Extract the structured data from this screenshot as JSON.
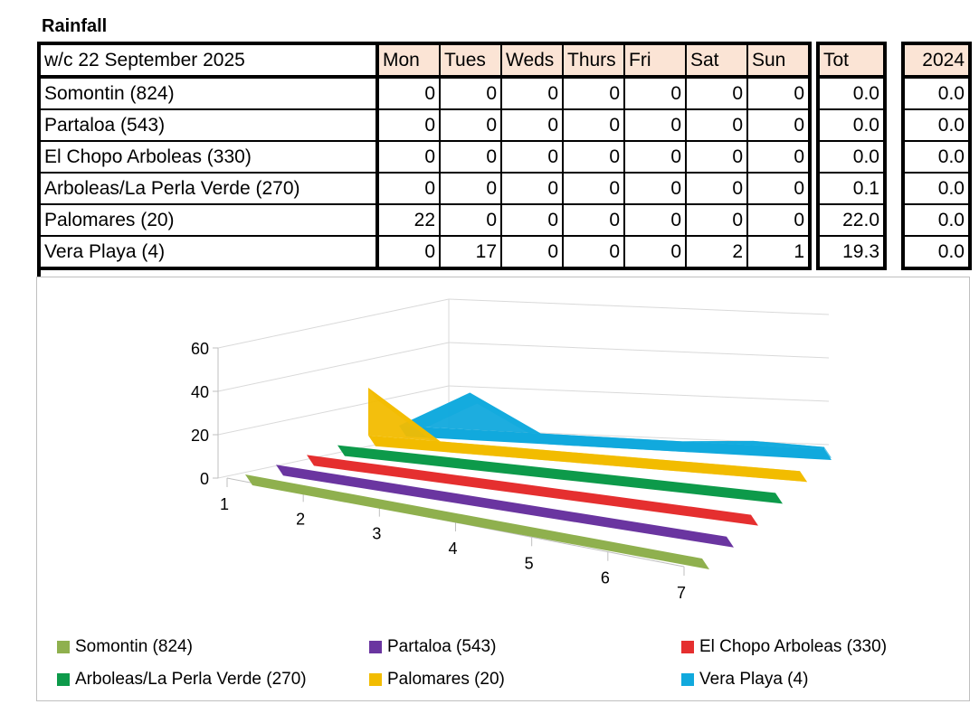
{
  "title": "Rainfall",
  "table": {
    "week_label": "w/c 22 September  2025",
    "days": [
      "Mon",
      "Tues",
      "Weds",
      "Thurs",
      "Fri",
      "Sat",
      "Sun"
    ],
    "tot_header": "Tot",
    "year_header": "2024",
    "rows": [
      {
        "name": "Somontin (824)",
        "values": [
          "0",
          "0",
          "0",
          "0",
          "0",
          "0",
          "0"
        ],
        "tot": "0.0",
        "y2024": "0.0"
      },
      {
        "name": "Partaloa (543)",
        "values": [
          "0",
          "0",
          "0",
          "0",
          "0",
          "0",
          "0"
        ],
        "tot": "0.0",
        "y2024": "0.0"
      },
      {
        "name": "El Chopo Arboleas (330)",
        "values": [
          "0",
          "0",
          "0",
          "0",
          "0",
          "0",
          "0"
        ],
        "tot": "0.0",
        "y2024": "0.0"
      },
      {
        "name": "Arboleas/La Perla Verde (270)",
        "values": [
          "0",
          "0",
          "0",
          "0",
          "0",
          "0",
          "0"
        ],
        "tot": "0.1",
        "y2024": "0.0"
      },
      {
        "name": "Palomares (20)",
        "values": [
          "22",
          "0",
          "0",
          "0",
          "0",
          "0",
          "0"
        ],
        "tot": "22.0",
        "y2024": "0.0"
      },
      {
        "name": "Vera Playa (4)",
        "values": [
          "0",
          "17",
          "0",
          "0",
          "0",
          "2",
          "1"
        ],
        "tot": "19.3",
        "y2024": "0.0"
      }
    ]
  },
  "chart_data": {
    "type": "area",
    "style": "3d",
    "categories": [
      "1",
      "2",
      "3",
      "4",
      "5",
      "6",
      "7"
    ],
    "yticks": [
      "0",
      "20",
      "40",
      "60"
    ],
    "ylim": [
      0,
      60
    ],
    "grid": true,
    "legend_position": "bottom",
    "series": [
      {
        "name": "Somontin (824)",
        "color": "#8fb04e",
        "values": [
          0,
          0,
          0,
          0,
          0,
          0,
          0
        ]
      },
      {
        "name": "Partaloa (543)",
        "color": "#6a35a0",
        "values": [
          0,
          0,
          0,
          0,
          0,
          0,
          0
        ]
      },
      {
        "name": "El Chopo Arboleas (330)",
        "color": "#e52f2f",
        "values": [
          0,
          0,
          0,
          0,
          0,
          0,
          0
        ]
      },
      {
        "name": "Arboleas/La Perla Verde (270)",
        "color": "#0d9a4a",
        "values": [
          0,
          0,
          0,
          0,
          0,
          0,
          0
        ]
      },
      {
        "name": "Palomares (20)",
        "color": "#f2bc00",
        "values": [
          22,
          0,
          0,
          0,
          0,
          0,
          0
        ]
      },
      {
        "name": "Vera Playa (4)",
        "color": "#11a9dd",
        "values": [
          0,
          17,
          0,
          0,
          0,
          2,
          1
        ]
      }
    ]
  }
}
